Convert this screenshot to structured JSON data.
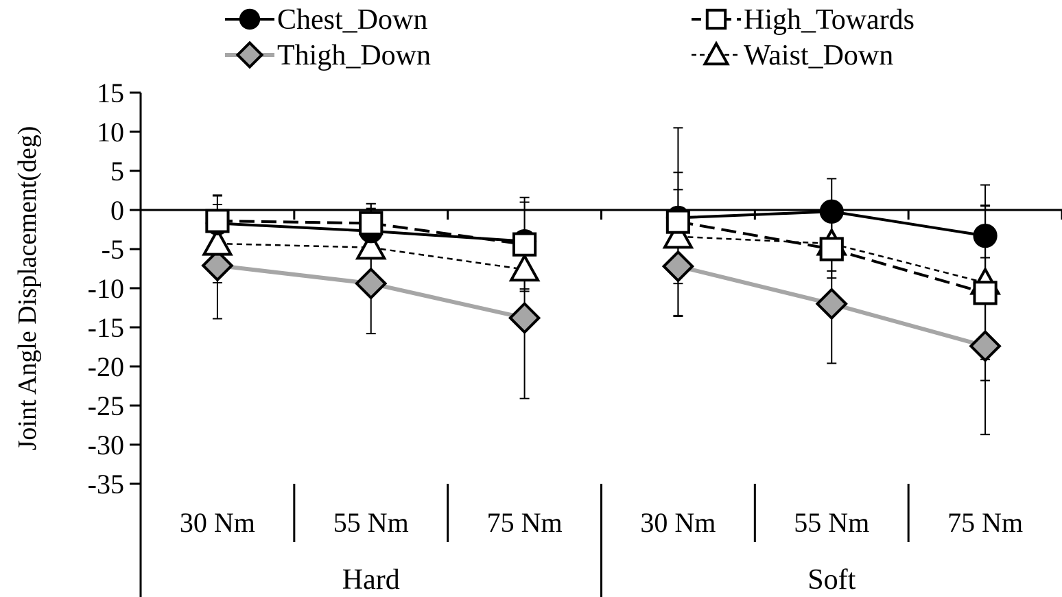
{
  "chart_data": {
    "type": "line",
    "ylabel": "Joint Angle Displacement(deg)",
    "ylim": [
      -35,
      15
    ],
    "yticks": [
      15,
      10,
      5,
      0,
      -5,
      -10,
      -15,
      -20,
      -25,
      -30,
      -35
    ],
    "categories": [
      "30 Nm",
      "55 Nm",
      "75 Nm",
      "30 Nm",
      "55 Nm",
      "75 Nm"
    ],
    "groups": [
      {
        "label": "Hard",
        "span": [
          0,
          2
        ]
      },
      {
        "label": "Soft",
        "span": [
          3,
          5
        ]
      }
    ],
    "legend_position": "top",
    "series": [
      {
        "name": "Chest_Down",
        "segments": [
          [
            0,
            2
          ],
          [
            3,
            5
          ]
        ],
        "values": [
          -1.7,
          -2.7,
          -4.0,
          -1.0,
          -0.2,
          -3.3
        ],
        "error": [
          3.5,
          3.5,
          5.0,
          5.8,
          4.2,
          6.5
        ],
        "line_color": "#000000",
        "line_dash": "solid",
        "line_width": 4,
        "marker": "circle",
        "marker_fill": "#000000",
        "marker_stroke": "#000000"
      },
      {
        "name": "High_Towards",
        "segments": [
          [
            0,
            2
          ],
          [
            3,
            5
          ]
        ],
        "values": [
          -1.4,
          -1.7,
          -4.4,
          -1.5,
          -5.0,
          -10.6
        ],
        "error": [
          3.3,
          2.5,
          6.0,
          12.0,
          3.7,
          11.2
        ],
        "line_color": "#000000",
        "line_dash": "long-dash",
        "line_width": 4,
        "marker": "square",
        "marker_fill": "#ffffff",
        "marker_stroke": "#000000"
      },
      {
        "name": "Thigh_Down",
        "segments": [
          [
            0,
            2
          ],
          [
            3,
            5
          ]
        ],
        "values": [
          -7.1,
          -9.4,
          -13.8,
          -7.2,
          -12.0,
          -17.4
        ],
        "error": [
          6.8,
          6.4,
          10.3,
          6.4,
          7.6,
          11.3
        ],
        "line_color": "#a6a6a6",
        "line_dash": "solid",
        "line_width": 6,
        "marker": "diamond",
        "marker_fill": "#a6a6a6",
        "marker_stroke": "#000000"
      },
      {
        "name": "Waist_Down",
        "segments": [
          [
            0,
            2
          ],
          [
            3,
            5
          ]
        ],
        "values": [
          -4.3,
          -4.8,
          -7.6,
          -3.4,
          -4.3,
          -9.3
        ],
        "error": [
          5.0,
          5.0,
          2.5,
          6.0,
          3.5,
          9.8
        ],
        "line_color": "#000000",
        "line_dash": "short-dash",
        "line_width": 2.5,
        "marker": "triangle",
        "marker_fill": "#ffffff",
        "marker_stroke": "#000000"
      }
    ],
    "legend_order": [
      "Chest_Down",
      "High_Towards",
      "Thigh_Down",
      "Waist_Down"
    ]
  }
}
